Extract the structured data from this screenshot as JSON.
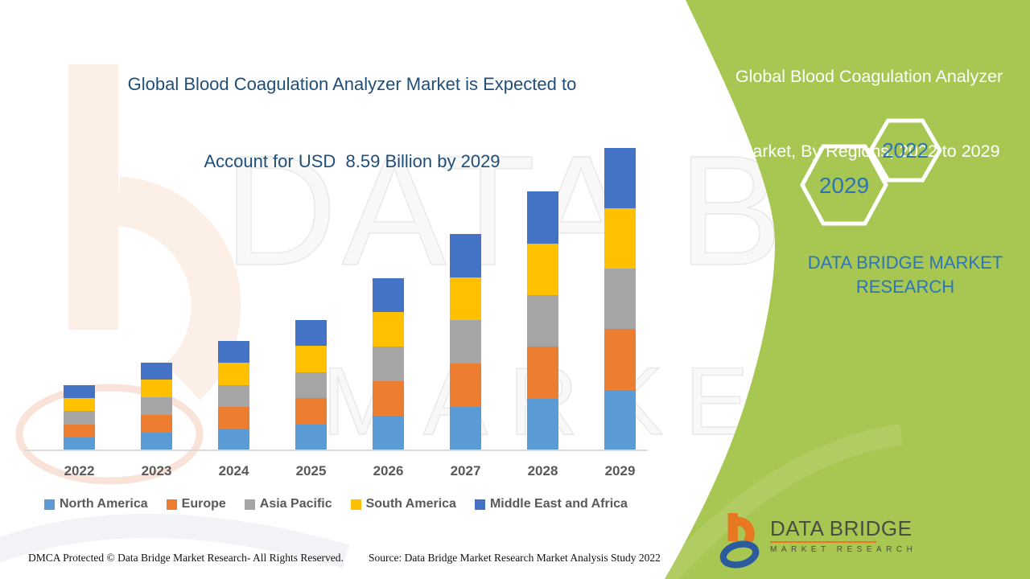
{
  "header": {
    "title_line1": "Global Blood Coagulation Analyzer Market is Expected to",
    "title_line2": "Account for USD  8.59 Billion by 2029",
    "title_color": "#1F4E79"
  },
  "green_panel": {
    "color": "#A7C752",
    "title_line1": "Global Blood Coagulation Analyzer",
    "title_line2": "Market, By Regions, 2022 to 2029",
    "brand_text": "DATA BRIDGE MARKET RESEARCH",
    "brand_text_color": "#2E75B6",
    "badge_start_year": "2022",
    "badge_end_year": "2029",
    "badge_text_color": "#2E74B5"
  },
  "watermark": {
    "line1": "DATA BRIDGE",
    "line2": "MARKET RESEARCH"
  },
  "chart_data": {
    "type": "bar",
    "stacked": true,
    "title": "Global Blood Coagulation Analyzer Market, By Regions, 2022 to 2029",
    "unit": "USD Billion",
    "categories": [
      "2022",
      "2023",
      "2024",
      "2025",
      "2026",
      "2027",
      "2028",
      "2029"
    ],
    "series": [
      {
        "name": "North America",
        "color": "#5B9BD5",
        "values": [
          0.37,
          0.5,
          0.62,
          0.74,
          0.98,
          1.23,
          1.47,
          1.72
        ]
      },
      {
        "name": "Europe",
        "color": "#ED7D31",
        "values": [
          0.37,
          0.5,
          0.62,
          0.74,
          0.98,
          1.23,
          1.47,
          1.72
        ]
      },
      {
        "name": "Asia Pacific",
        "color": "#A5A5A5",
        "values": [
          0.37,
          0.5,
          0.62,
          0.74,
          0.98,
          1.23,
          1.47,
          1.72
        ]
      },
      {
        "name": "South America",
        "color": "#FFC000",
        "values": [
          0.37,
          0.5,
          0.62,
          0.74,
          0.98,
          1.23,
          1.47,
          1.72
        ]
      },
      {
        "name": "Middle East and Africa",
        "color": "#4472C4",
        "values": [
          0.37,
          0.5,
          0.62,
          0.74,
          0.98,
          1.23,
          1.47,
          1.72
        ]
      }
    ],
    "totals": [
      1.85,
      2.49,
      3.11,
      3.7,
      4.91,
      6.15,
      7.36,
      8.59
    ],
    "ylim": [
      0,
      8.59
    ],
    "grid": false,
    "legend_position": "bottom",
    "xlabel": "",
    "ylabel": ""
  },
  "footer": {
    "dmca": "DMCA Protected © Data Bridge Market Research- All Rights Reserved.",
    "source": "Source: Data Bridge Market Research Market Analysis Study 2022"
  },
  "logo": {
    "title": "DATA BRIDGE",
    "subtitle": "MARKET RESEARCH",
    "orange": "#E87722",
    "blue": "#2B5B9E"
  }
}
